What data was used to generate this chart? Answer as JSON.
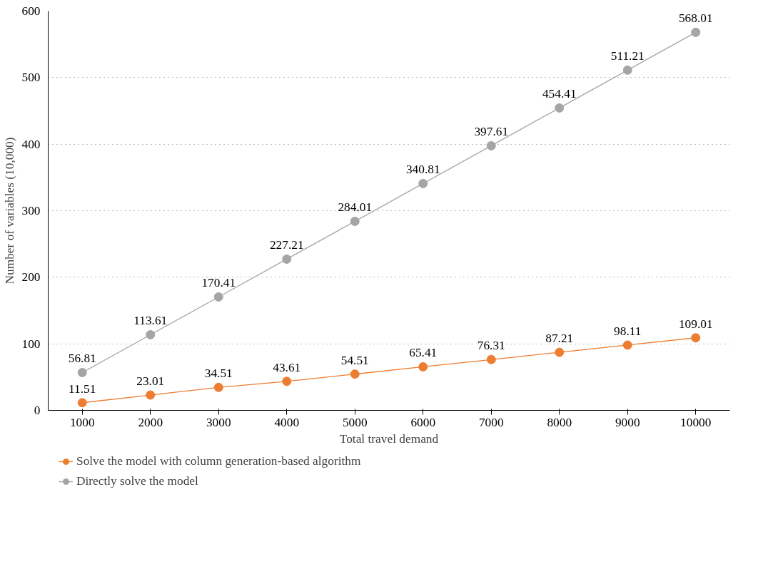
{
  "chart_data": {
    "type": "line",
    "xlabel": "Total travel demand",
    "ylabel": "Number of variables (10,000)",
    "categories": [
      "1000",
      "2000",
      "3000",
      "4000",
      "5000",
      "6000",
      "7000",
      "8000",
      "9000",
      "10000"
    ],
    "series": [
      {
        "name": "Solve the model with column generation-based algorithm",
        "color": "#ed7d31",
        "values": [
          11.51,
          23.01,
          34.51,
          43.61,
          54.51,
          65.41,
          76.31,
          87.21,
          98.11,
          109.01
        ]
      },
      {
        "name": "Directly solve the model",
        "color": "#a5a5a5",
        "values": [
          56.81,
          113.61,
          170.41,
          227.21,
          284.01,
          340.81,
          397.61,
          454.41,
          511.21,
          568.01
        ]
      }
    ],
    "ylim": [
      0,
      600
    ],
    "yticks": [
      0,
      100,
      200,
      300,
      400,
      500,
      600
    ],
    "grid": "y",
    "legend": "bottom",
    "marker": "circle",
    "data_labels": true
  }
}
